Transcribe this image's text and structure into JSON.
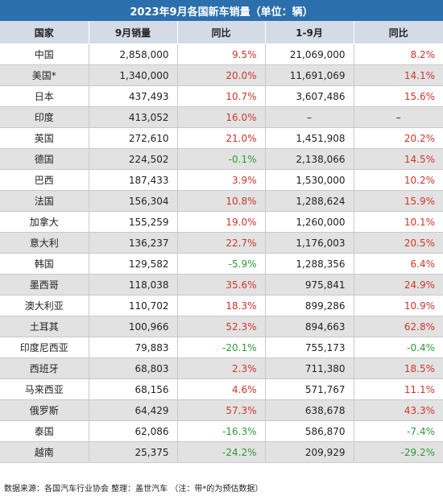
{
  "title": "2023年9月各国新车销量（单位：辆）",
  "headers": [
    "国家",
    "9月销量",
    "同比",
    "1-9月",
    "同比"
  ],
  "rows": [
    {
      "country": "中国",
      "sep": "2,858,000",
      "sep_yoy": "9.5%",
      "ytd": "21,069,000",
      "ytd_yoy": "8.2%"
    },
    {
      "country": "美国*",
      "sep": "1,340,000",
      "sep_yoy": "20.0%",
      "ytd": "11,691,069",
      "ytd_yoy": "14.1%"
    },
    {
      "country": "日本",
      "sep": "437,493",
      "sep_yoy": "10.7%",
      "ytd": "3,607,486",
      "ytd_yoy": "15.6%"
    },
    {
      "country": "印度",
      "sep": "413,052",
      "sep_yoy": "16.0%",
      "ytd": "–",
      "ytd_yoy": "–"
    },
    {
      "country": "英国",
      "sep": "272,610",
      "sep_yoy": "21.0%",
      "ytd": "1,451,908",
      "ytd_yoy": "20.2%"
    },
    {
      "country": "德国",
      "sep": "224,502",
      "sep_yoy": "-0.1%",
      "ytd": "2,138,066",
      "ytd_yoy": "14.5%"
    },
    {
      "country": "巴西",
      "sep": "187,433",
      "sep_yoy": "3.9%",
      "ytd": "1,530,000",
      "ytd_yoy": "10.2%"
    },
    {
      "country": "法国",
      "sep": "156,304",
      "sep_yoy": "10.8%",
      "ytd": "1,288,624",
      "ytd_yoy": "15.9%"
    },
    {
      "country": "加拿大",
      "sep": "155,259",
      "sep_yoy": "19.0%",
      "ytd": "1,260,000",
      "ytd_yoy": "10.1%"
    },
    {
      "country": "意大利",
      "sep": "136,237",
      "sep_yoy": "22.7%",
      "ytd": "1,176,003",
      "ytd_yoy": "20.5%"
    },
    {
      "country": "韩国",
      "sep": "129,582",
      "sep_yoy": "-5.9%",
      "ytd": "1,288,356",
      "ytd_yoy": "6.4%"
    },
    {
      "country": "墨西哥",
      "sep": "118,038",
      "sep_yoy": "35.6%",
      "ytd": "975,841",
      "ytd_yoy": "24.9%"
    },
    {
      "country": "澳大利亚",
      "sep": "110,702",
      "sep_yoy": "18.3%",
      "ytd": "899,286",
      "ytd_yoy": "10.9%"
    },
    {
      "country": "土耳其",
      "sep": "100,966",
      "sep_yoy": "52.3%",
      "ytd": "894,663",
      "ytd_yoy": "62.8%"
    },
    {
      "country": "印度尼西亚",
      "sep": "79,883",
      "sep_yoy": "-20.1%",
      "ytd": "755,173",
      "ytd_yoy": "-0.4%"
    },
    {
      "country": "西班牙",
      "sep": "68,803",
      "sep_yoy": "2.3%",
      "ytd": "711,380",
      "ytd_yoy": "18.5%"
    },
    {
      "country": "马来西亚",
      "sep": "68,156",
      "sep_yoy": "4.6%",
      "ytd": "571,767",
      "ytd_yoy": "11.1%"
    },
    {
      "country": "俄罗斯",
      "sep": "64,429",
      "sep_yoy": "57.3%",
      "ytd": "638,678",
      "ytd_yoy": "43.3%"
    },
    {
      "country": "泰国",
      "sep": "62,086",
      "sep_yoy": "-16.3%",
      "ytd": "586,870",
      "ytd_yoy": "-7.4%"
    },
    {
      "country": "越南",
      "sep": "25,375",
      "sep_yoy": "-24.2%",
      "ytd": "209,929",
      "ytd_yoy": "-29.2%"
    }
  ],
  "footer": "数据来源：各国汽车行业协会 整理：盖世汽车 （注：带*的为预估数据）",
  "colors": {
    "title_bg": "#2b6fac",
    "header_bg": "#d5dbe6",
    "stripe_bg": "#e2e2e2",
    "positive": "#d0352b",
    "negative": "#2f9a36"
  }
}
